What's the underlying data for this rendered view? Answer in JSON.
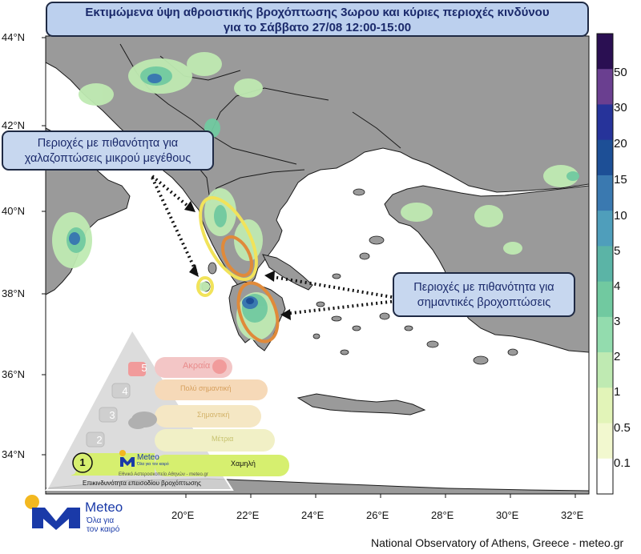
{
  "title": {
    "line1": "Εκτιμώμενα ύψη αθροιστικής βροχόπτωσης 3ωρου και κύριες περιοχές κινδύνου",
    "line2": "για το Σάββατο 27/08 12:00-15:00"
  },
  "callouts": {
    "hail_line1": "Περιοχές με πιθανότητα για",
    "hail_line2": "χαλαζοπτώσεις μικρού μεγέθους",
    "rain_line1": "Περιοχές με πιθανότητα για",
    "rain_line2": "σημαντικές βροχοπτώσεις"
  },
  "axes": {
    "latitudes": [
      "44°N",
      "42°N",
      "40°N",
      "38°N",
      "36°N",
      "34°N"
    ],
    "longitudes": [
      "20°E",
      "22°E",
      "24°E",
      "26°E",
      "28°E",
      "30°E",
      "32°E"
    ]
  },
  "colorbar": {
    "labels": [
      "50",
      "30",
      "20",
      "15",
      "10",
      "5",
      "4",
      "3",
      "2",
      "1",
      "0.5",
      "0.1"
    ],
    "colors": [
      "#2a0f52",
      "#6a3f90",
      "#26339a",
      "#1d4f96",
      "#3a79b0",
      "#4f9ebb",
      "#5bb4a6",
      "#71c9a0",
      "#93dcae",
      "#bfeab2",
      "#e2f4b8",
      "#f2f8cf",
      "#ffffff"
    ]
  },
  "risk_scale": {
    "levels": [
      {
        "num": "5",
        "label": "Ακραία"
      },
      {
        "num": "4",
        "label": "Πολύ σημαντική"
      },
      {
        "num": "3",
        "label": "Σημαντική"
      },
      {
        "num": "2",
        "label": "Μέτρια"
      },
      {
        "num": "1",
        "label": "Χαμηλή"
      }
    ],
    "caption": "Επικινδυνότητα επεισοδίου βροχόπτωσης",
    "small_text": "Εθνικό Αστεροσκοπείο Αθηνών - meteo.gr",
    "active_level": "1"
  },
  "brand": {
    "name": "Meteo",
    "tagline_1": "Όλα για",
    "tagline_2": "τον καιρό",
    "accent": "#f3b820",
    "blue": "#1a3aa8"
  },
  "credit": "National Observatory of Athens, Greece - meteo.gr"
}
